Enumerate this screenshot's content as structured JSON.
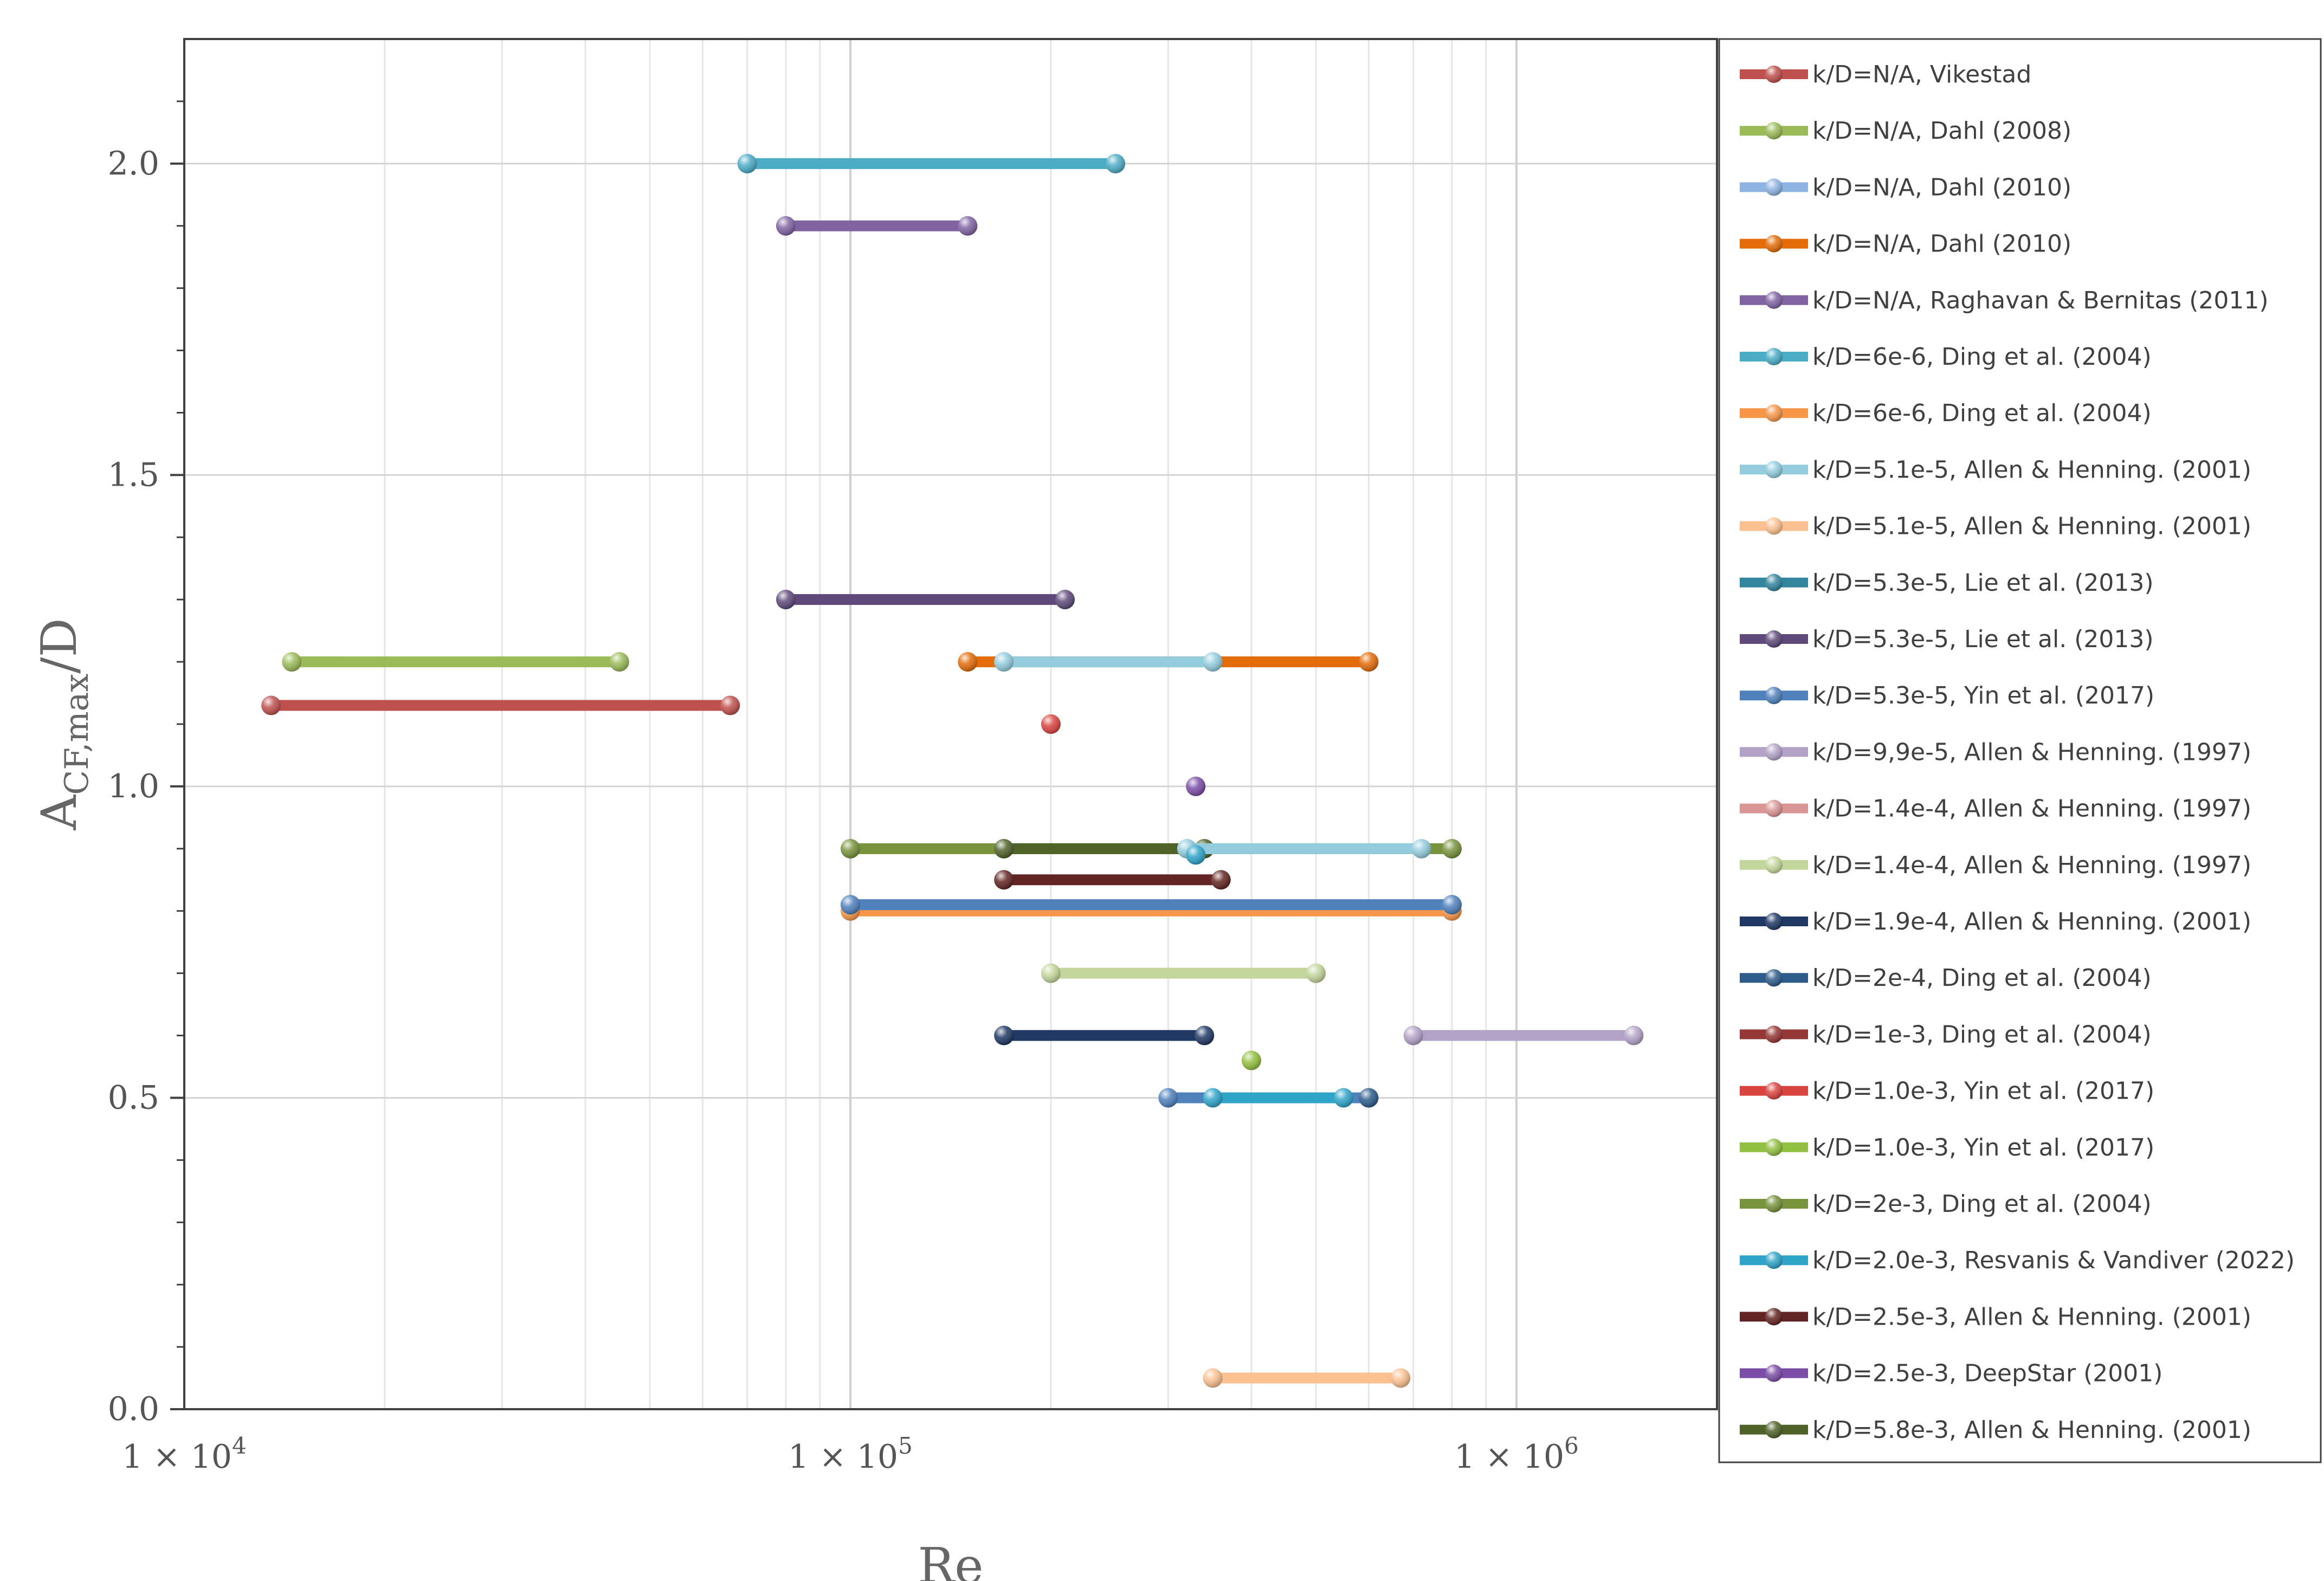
{
  "chart_data": {
    "type": "line",
    "title": "",
    "xlabel": "Re",
    "ylabel_main": "A",
    "ylabel_sub": "CF,max",
    "ylabel_tail": "/D",
    "xscale": "log",
    "xlim": [
      10000,
      2000000
    ],
    "ylim": [
      0,
      2.2
    ],
    "x_tick_values": [
      10000,
      100000,
      1000000
    ],
    "x_tick_base": "1 × 10",
    "x_tick_exponents": [
      "4",
      "5",
      "6"
    ],
    "y_ticks": [
      0,
      0.5,
      1.0,
      1.5,
      2.0
    ],
    "y_tick_labels": [
      "0.0",
      "0.5",
      "1.0",
      "1.5",
      "2.0"
    ],
    "grid": true,
    "legend_position": "right",
    "series": [
      {
        "name": "k/D=N/A, Vikestad",
        "color": "#C0504D",
        "x": [
          13500,
          66000
        ],
        "y": [
          1.13,
          1.13
        ]
      },
      {
        "name": "k/D=N/A, Dahl (2008)",
        "color": "#9BBB59",
        "x": [
          14500,
          45000
        ],
        "y": [
          1.2,
          1.2
        ]
      },
      {
        "name": "k/D=N/A, Dahl (2010)",
        "color": "#8EB4E3",
        "x": [],
        "y": []
      },
      {
        "name": "k/D=N/A, Dahl (2010)",
        "color": "#E36C09",
        "x": [
          150000,
          600000
        ],
        "y": [
          1.2,
          1.2
        ]
      },
      {
        "name": "k/D=N/A, Raghavan & Bernitas (2011)",
        "color": "#8064A2",
        "x": [
          80000,
          150000
        ],
        "y": [
          1.9,
          1.9
        ]
      },
      {
        "name": "k/D=6e-6, Ding et al. (2004)",
        "color": "#4BACC6",
        "x": [
          70000,
          250000
        ],
        "y": [
          2.0,
          2.0
        ]
      },
      {
        "name": "k/D=6e-6, Ding et al. (2004)",
        "color": "#F79646",
        "x": [],
        "y": []
      },
      {
        "name": "k/D=5.1e-5, Allen & Henning. (2001)",
        "color": "#93CDDD",
        "x": [
          170000,
          350000
        ],
        "y": [
          1.2,
          1.2
        ]
      },
      {
        "name": "k/D=5.1e-5, Allen & Henning. (2001)",
        "color": "#FAC090",
        "x": [
          350000,
          670000
        ],
        "y": [
          0.05,
          0.05
        ]
      },
      {
        "name": "k/D=5.3e-5, Lie et al. (2013)",
        "color": "#31859C",
        "x": [],
        "y": []
      },
      {
        "name": "k/D=5.3e-5, Lie et al. (2013)",
        "color": "#5F497A",
        "x": [
          80000,
          210000
        ],
        "y": [
          1.3,
          1.3
        ]
      },
      {
        "name": "k/D=5.3e-5, Yin et al. (2017)",
        "color": "#4F81BD",
        "x": [
          300000,
          600000
        ],
        "y": [
          0.5,
          0.5
        ]
      },
      {
        "name": "k/D=9,9e-5, Allen & Henning. (1997)",
        "color": "#B3A2C7",
        "x": [
          700000,
          1500000
        ],
        "y": [
          0.6,
          0.6
        ]
      },
      {
        "name": "k/D=1.4e-4, Allen & Henning. (1997)",
        "color": "#D99694",
        "x": [],
        "y": []
      },
      {
        "name": "k/D=1.4e-4, Allen & Henning. (1997)",
        "color": "#C3D69B",
        "x": [
          200000,
          500000
        ],
        "y": [
          0.7,
          0.7
        ]
      },
      {
        "name": "k/D=1.9e-4, Allen & Henning. (2001)",
        "color": "#1F3864",
        "x": [
          170000,
          340000
        ],
        "y": [
          0.6,
          0.6
        ]
      },
      {
        "name": "k/D=2e-4, Ding et al. (2004)",
        "color": "#2E5C8A",
        "x": [
          100000,
          800000
        ],
        "y": [
          0.81,
          0.81
        ]
      },
      {
        "name": "k/D=1e-3, Ding et al. (2004)",
        "color": "#953735",
        "x": [],
        "y": []
      },
      {
        "name": "k/D=1.0e-3, Yin et al. (2017)",
        "color": "#D9443F",
        "x": [
          200000
        ],
        "y": [
          1.1
        ]
      },
      {
        "name": "k/D=1.0e-3, Yin et al. (2017)",
        "color": "#92C040",
        "x": [
          400000
        ],
        "y": [
          0.56
        ]
      },
      {
        "name": "k/D=2e-3, Ding et al. (2004)",
        "color": "#77933C",
        "x": [
          100000,
          800000
        ],
        "y": [
          0.9,
          0.9
        ]
      },
      {
        "name": "k/D=2.0e-3, Resvanis & Vandiver (2022)",
        "color": "#2FA4C8",
        "x": [
          350000,
          550000
        ],
        "y": [
          0.5,
          0.5
        ]
      },
      {
        "name": "k/D=2.5e-3, Allen & Henning. (2001)",
        "color": "#632523",
        "x": [
          170000,
          360000
        ],
        "y": [
          0.85,
          0.85
        ]
      },
      {
        "name": "k/D=2.5e-3, DeepStar (2001)",
        "color": "#7C4DA6",
        "x": [
          330000
        ],
        "y": [
          1.0
        ]
      },
      {
        "name": "k/D=5.8e-3, Allen & Henning. (2001)",
        "color": "#4F6228",
        "x": [
          170000,
          340000
        ],
        "y": [
          0.9,
          0.9
        ]
      }
    ],
    "extra_segments": [
      {
        "series_index": 6,
        "color": "#F79646",
        "x": [
          100000,
          800000
        ],
        "y": [
          0.8,
          0.8
        ]
      },
      {
        "series_index": 7,
        "color": "#93CDDD",
        "x": [
          320000,
          720000
        ],
        "y": [
          0.9,
          0.9
        ]
      },
      {
        "series_index": 11,
        "color": "#4F81BD",
        "x": [
          100000,
          800000
        ],
        "y": [
          0.81,
          0.81
        ]
      },
      {
        "series_index": 21,
        "color": "#2FA4C8",
        "x": [
          330000
        ],
        "y": [
          0.89
        ]
      },
      {
        "series_index": 16,
        "color": "#2E5C8A",
        "x": [
          600000
        ],
        "y": [
          0.5
        ]
      }
    ]
  }
}
